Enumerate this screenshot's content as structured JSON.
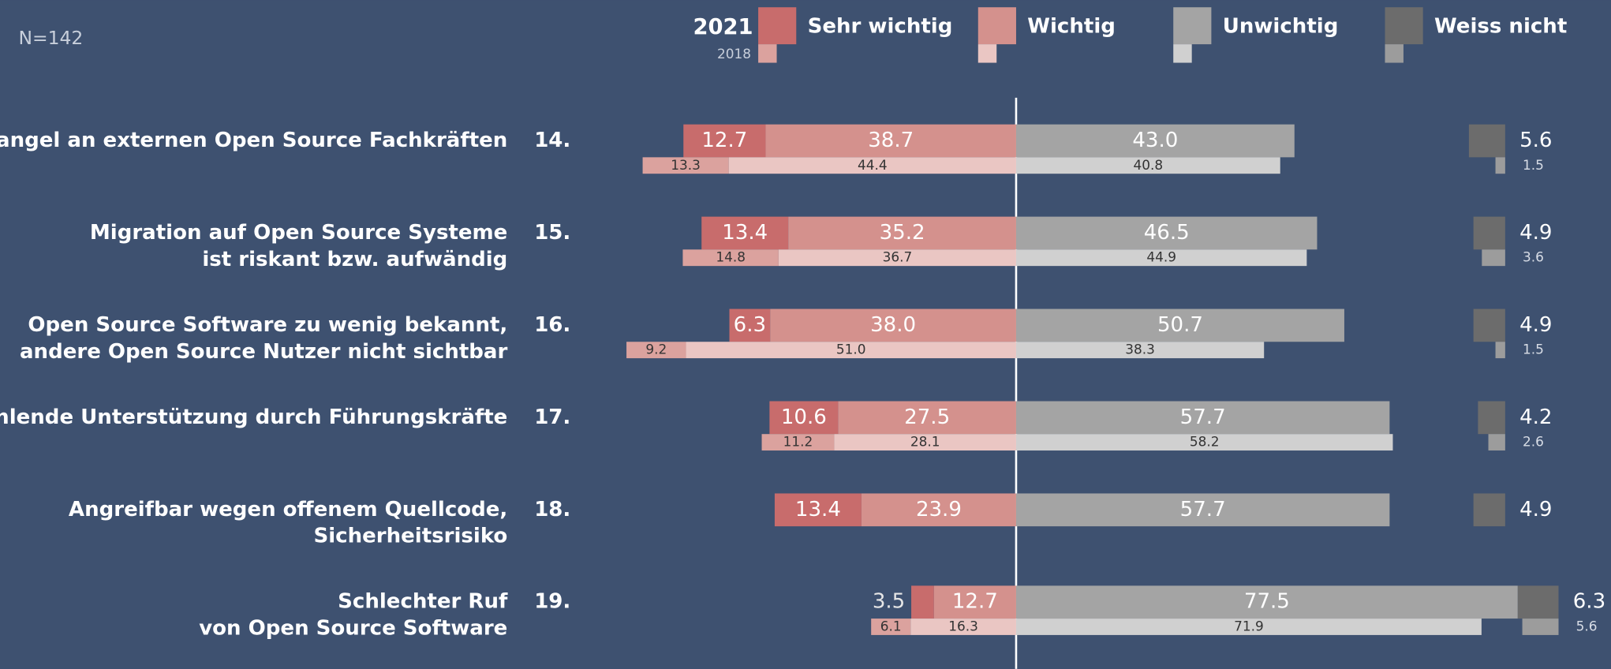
{
  "chart_data": {
    "type": "diverging_bar",
    "note": "N=142",
    "categories": [
      [
        "Mangel an externen Open Source Fachkräften"
      ],
      [
        "Migration auf Open Source Systeme",
        "ist riskant bzw. aufwändig"
      ],
      [
        "Open Source Software zu wenig bekannt,",
        "andere Open Source Nutzer nicht sichtbar"
      ],
      [
        "Fehlende Unterstützung durch Führungskräfte"
      ],
      [
        "Angreifbar wegen offenem Quellcode,",
        "Sicherheitsrisiko"
      ],
      [
        "Schlechter Ruf",
        "von Open Source Software"
      ]
    ],
    "ranks": [
      "14.",
      "15.",
      "16.",
      "17.",
      "18.",
      "19."
    ],
    "groups": [
      {
        "year": "2021",
        "series": [
          {
            "name": "Sehr wichtig",
            "color": "#c86c6c",
            "values": [
              12.7,
              13.4,
              6.3,
              10.6,
              13.4,
              3.5
            ],
            "value_labels": [
              "12.7",
              "13.4",
              "6.3",
              "10.6",
              "13.4",
              "3.5"
            ]
          },
          {
            "name": "Wichtig",
            "color": "#d4918d",
            "values": [
              38.7,
              35.2,
              38.0,
              27.5,
              23.9,
              12.7
            ],
            "value_labels": [
              "38.7",
              "35.2",
              "38.0",
              "27.5",
              "23.9",
              "12.7"
            ]
          },
          {
            "name": "Unwichtig",
            "color": "#a4a4a4",
            "values": [
              43.0,
              46.5,
              50.7,
              57.7,
              57.7,
              77.5
            ],
            "value_labels": [
              "43.0",
              "46.5",
              "50.7",
              "57.7",
              "57.7",
              "77.5"
            ]
          },
          {
            "name": "Weiss nicht",
            "color": "#6c6c6c",
            "values": [
              5.6,
              4.9,
              4.9,
              4.2,
              4.9,
              6.3
            ],
            "value_labels": [
              "5.6",
              "4.9",
              "4.9",
              "4.2",
              "4.9",
              "6.3"
            ]
          }
        ]
      },
      {
        "year": "2018",
        "series": [
          {
            "color": "#dba29e",
            "values": [
              13.3,
              14.8,
              9.2,
              11.2,
              null,
              6.1
            ],
            "value_labels": [
              "13.3",
              "14.8",
              "9.2",
              "11.2",
              null,
              "6.1"
            ]
          },
          {
            "color": "#eac6c3",
            "values": [
              44.4,
              36.7,
              51.0,
              28.1,
              null,
              16.3
            ],
            "value_labels": [
              "44.4",
              "36.7",
              "51.0",
              "28.1",
              null,
              "16.3"
            ]
          },
          {
            "color": "#d0d0d0",
            "values": [
              40.8,
              44.9,
              38.3,
              58.2,
              null,
              71.9
            ],
            "value_labels": [
              "40.8",
              "44.9",
              "38.3",
              "58.2",
              null,
              "71.9"
            ]
          },
          {
            "color": "#9c9c9c",
            "values": [
              1.5,
              3.6,
              1.5,
              2.6,
              null,
              5.6
            ],
            "value_labels": [
              "1.5",
              "3.6",
              "1.5",
              "2.6",
              null,
              "5.6"
            ]
          }
        ]
      }
    ]
  }
}
